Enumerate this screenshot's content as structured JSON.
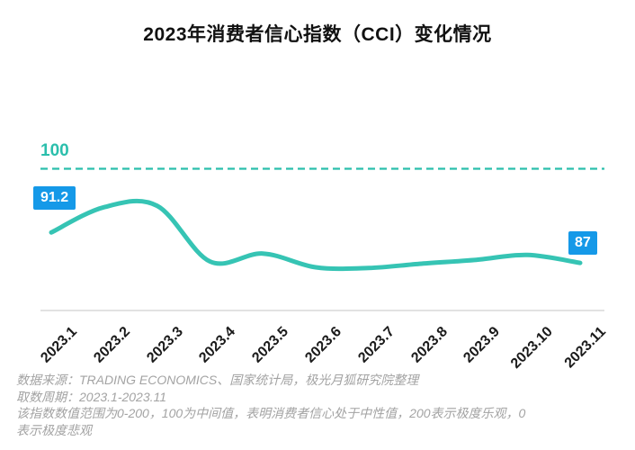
{
  "title": "2023年消费者信心指数（CCI）变化情况",
  "chart_data": {
    "type": "line",
    "title": "2023年消费者信心指数（CCI）变化情况",
    "categories": [
      "2023.1",
      "2023.2",
      "2023.3",
      "2023.4",
      "2023.5",
      "2023.6",
      "2023.7",
      "2023.8",
      "2023.9",
      "2023.10",
      "2023.11"
    ],
    "values": [
      91.2,
      94.7,
      94.9,
      87.2,
      88.3,
      86.4,
      86.3,
      86.9,
      87.4,
      88.1,
      87
    ],
    "xlabel": "",
    "ylabel": "",
    "grid": false,
    "x_tick_rotation": 45,
    "y_axis_visible": false,
    "reference_line": {
      "value": 100,
      "label": "100",
      "color": "#2bbfac",
      "style": "dashed"
    },
    "point_labels": {
      "first": "91.2",
      "last": "87"
    },
    "line_color": "#36c4b4",
    "label_bg_color": "#1599e8",
    "label_text_color": "#ffffff",
    "axis_line_color": "#d9d9d9"
  },
  "footer": {
    "lines": [
      "数据来源：TRADING ECONOMICS、国家统计局，极光月狐研究院整理",
      "取数周期：2023.1-2023.11",
      "该指数数值范围为0-200，100为中间值，表明消费者信心处于中性值，200表示极度乐观，0",
      "表示极度悲观"
    ]
  }
}
